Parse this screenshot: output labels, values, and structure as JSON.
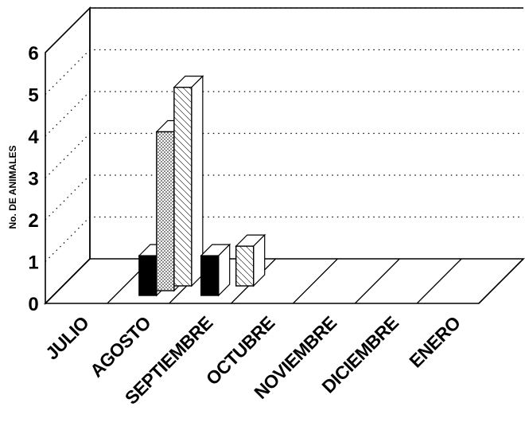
{
  "chart_data": {
    "type": "bar",
    "title": "",
    "xlabel": "",
    "ylabel": "No. DE ANIMALES",
    "ylim": [
      0,
      6
    ],
    "yticks": [
      "0",
      "1",
      "2",
      "3",
      "4",
      "5",
      "6"
    ],
    "grid": true,
    "categories": [
      "JULIO",
      "AGOSTO",
      "SEPTIEMBRE",
      "OCTUBRE",
      "NOVIEMBRE",
      "DICIEMBRE",
      "ENERO"
    ],
    "series": [
      {
        "values": [
          0,
          1,
          1,
          0,
          0,
          0,
          0
        ],
        "color": "#000000",
        "pattern": "solid"
      },
      {
        "values": [
          0,
          4,
          0,
          0,
          0,
          0,
          0
        ],
        "color": "#ffffff",
        "pattern": "dots"
      },
      {
        "values": [
          0,
          5,
          1,
          0,
          0,
          0,
          0
        ],
        "color": "#ffffff",
        "pattern": "diagonal"
      }
    ]
  }
}
